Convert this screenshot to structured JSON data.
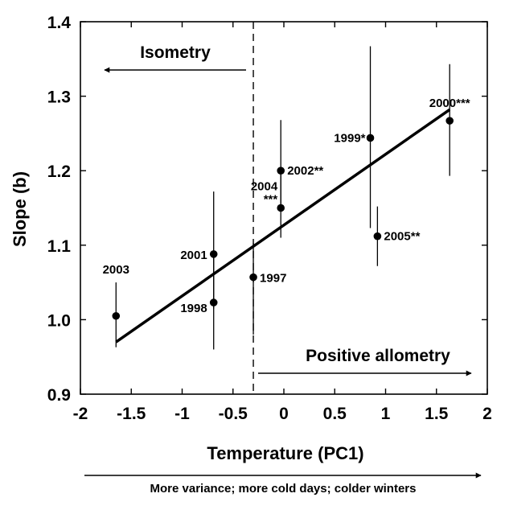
{
  "chart_data": {
    "type": "scatter",
    "xlabel": "Temperature (PC1)",
    "ylabel": "Slope (b)",
    "xlim": [
      -2,
      2
    ],
    "ylim": [
      0.9,
      1.4
    ],
    "xticks": [
      "-2",
      "-1.5",
      "-1",
      "-0.5",
      "0",
      "0.5",
      "1",
      "1.5",
      "2"
    ],
    "yticks": [
      "0.9",
      "1.0",
      "1.1",
      "1.2",
      "1.3",
      "1.4"
    ],
    "threshold_x": -0.3,
    "points": [
      {
        "label": "2003",
        "x": -1.65,
        "y": 1.005,
        "lo": 0.963,
        "hi": 1.05
      },
      {
        "label": "2001",
        "x": -0.69,
        "y": 1.088,
        "lo": 1.015,
        "hi": 1.172
      },
      {
        "label": "1998",
        "x": -0.69,
        "y": 1.023,
        "lo": 0.96,
        "hi": 1.088
      },
      {
        "label": "1997",
        "x": -0.3,
        "y": 1.057,
        "lo": 0.98,
        "hi": 1.103
      },
      {
        "label": "2002**",
        "x": -0.03,
        "y": 1.2,
        "lo": 1.15,
        "hi": 1.268
      },
      {
        "label": "2004\n***",
        "x": -0.03,
        "y": 1.15,
        "lo": 1.11,
        "hi": 1.2
      },
      {
        "label": "1999*",
        "x": 0.85,
        "y": 1.244,
        "lo": 1.123,
        "hi": 1.367
      },
      {
        "label": "2005**",
        "x": 0.92,
        "y": 1.112,
        "lo": 1.072,
        "hi": 1.152
      },
      {
        "label": "2000***",
        "x": 1.63,
        "y": 1.267,
        "lo": 1.193,
        "hi": 1.343
      }
    ],
    "regression": {
      "x": [
        -1.65,
        1.63
      ],
      "y": [
        0.97,
        1.282
      ]
    },
    "annotations": {
      "isometry": "Isometry",
      "positive_allometry": "Positive allometry",
      "footer": "More variance; more cold days; colder winters"
    }
  }
}
